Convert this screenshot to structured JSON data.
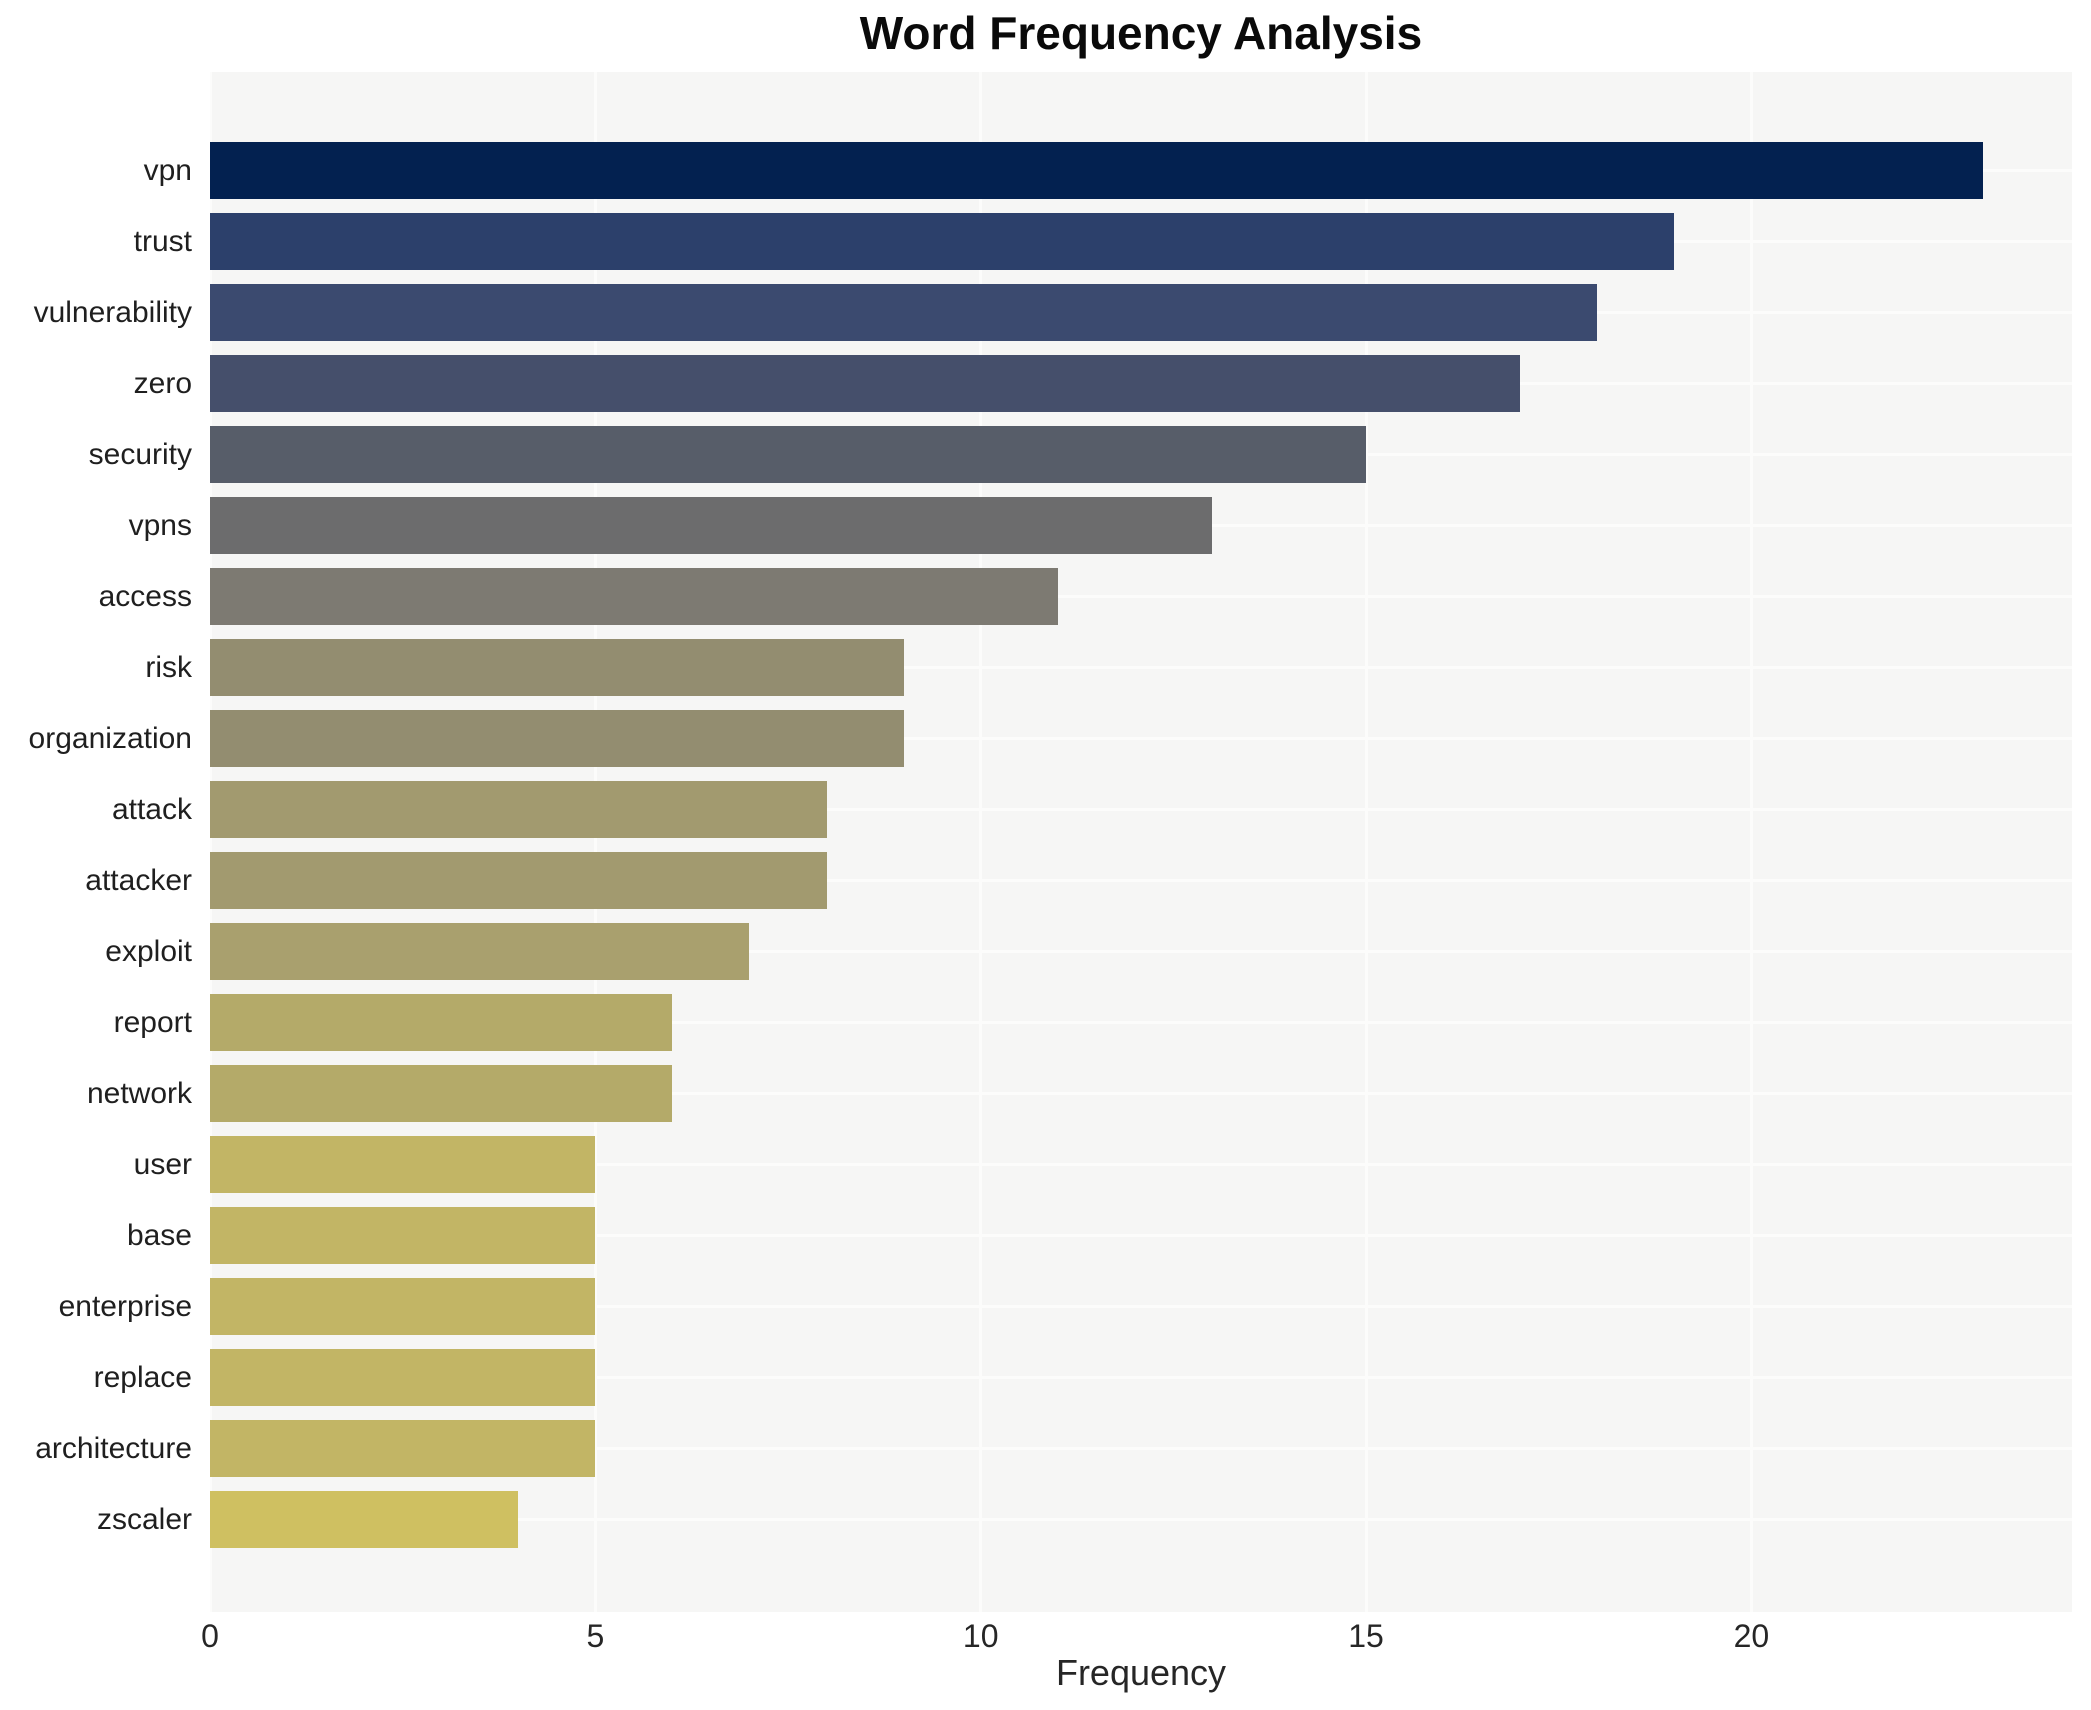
{
  "chart_data": {
    "type": "bar",
    "orientation": "horizontal",
    "title": "Word Frequency Analysis",
    "xlabel": "Frequency",
    "ylabel": "",
    "categories": [
      "vpn",
      "trust",
      "vulnerability",
      "zero",
      "security",
      "vpns",
      "access",
      "risk",
      "organization",
      "attack",
      "attacker",
      "exploit",
      "report",
      "network",
      "user",
      "base",
      "enterprise",
      "replace",
      "architecture",
      "zscaler"
    ],
    "values": [
      23,
      19,
      18,
      17,
      15,
      13,
      11,
      9,
      9,
      8,
      8,
      7,
      6,
      6,
      5,
      5,
      5,
      5,
      5,
      4
    ],
    "bar_colors": [
      "#032150",
      "#2c406b",
      "#3b4a6f",
      "#454f6b",
      "#575d69",
      "#6c6c6d",
      "#7d7a72",
      "#938d70",
      "#938d70",
      "#a29a6f",
      "#a29a6f",
      "#a9a06e",
      "#b4aa69",
      "#b4aa69",
      "#c2b565",
      "#c2b565",
      "#c2b565",
      "#c2b565",
      "#c2b565",
      "#cfc061"
    ],
    "xticks": [
      0,
      5,
      10,
      15,
      20
    ],
    "xlim": [
      0,
      24.16
    ],
    "grid": true,
    "legend": "none",
    "plot_background": "#f6f6f5",
    "grid_color": "#fcfcfb",
    "figure_background": "#ffffff"
  }
}
